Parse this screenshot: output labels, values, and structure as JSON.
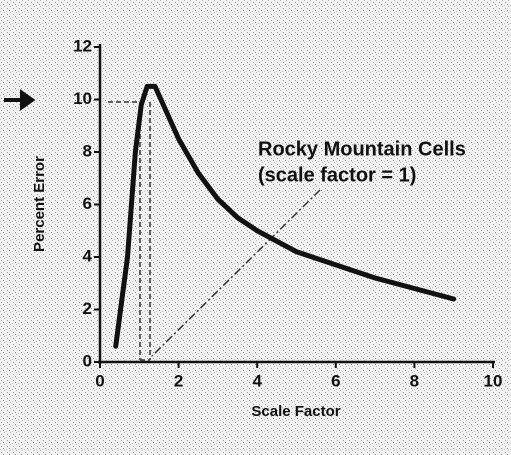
{
  "chart_data": {
    "type": "line",
    "xlabel": "Scale Factor",
    "ylabel": "Percent Error",
    "annotations": [
      "Rocky Mountain Cells",
      "(scale factor = 1)"
    ],
    "x": [
      0.4,
      0.7,
      0.9,
      1.05,
      1.2,
      1.4,
      1.7,
      2,
      2.5,
      3,
      3.5,
      4,
      5,
      6,
      7,
      8,
      9
    ],
    "series": [
      {
        "color": "#111111",
        "values": [
          0.6,
          4,
          8,
          9.8,
          10.5,
          10.5,
          9.5,
          8.5,
          7.2,
          6.2,
          5.5,
          5.0,
          4.2,
          3.7,
          3.2,
          2.8,
          2.4
        ]
      }
    ],
    "xlim": [
      0,
      10
    ],
    "xticks": [
      0,
      2,
      4,
      6,
      8,
      10
    ],
    "ylim": [
      0,
      12
    ],
    "yticks": [
      0,
      2,
      4,
      6,
      8,
      10,
      12
    ]
  }
}
